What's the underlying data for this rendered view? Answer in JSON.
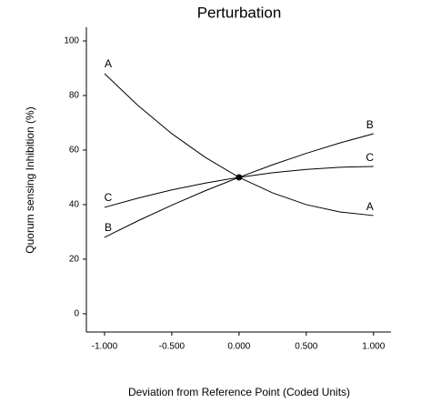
{
  "chart_data": {
    "type": "line",
    "title": "Perturbation",
    "x_label": "Deviation from Reference Point (Coded Units)",
    "y_label": "Quorum sensing Inhibition (%)",
    "x": [
      -1,
      -0.75,
      -0.5,
      -0.25,
      0,
      0.25,
      0.5,
      0.75,
      1
    ],
    "series": [
      {
        "name": "A",
        "color": "#000000",
        "values": [
          88,
          76.3,
          66,
          57.3,
          50,
          44.3,
          40,
          37.3,
          36
        ]
      },
      {
        "name": "B",
        "color": "#000000",
        "values": [
          28,
          34.1,
          39.8,
          45.1,
          50,
          54.6,
          58.8,
          62.6,
          66
        ]
      },
      {
        "name": "C",
        "color": "#000000",
        "values": [
          39,
          42.4,
          45.4,
          47.9,
          50,
          51.7,
          52.9,
          53.7,
          54
        ]
      }
    ],
    "reference_point": {
      "x": 0,
      "y": 50
    },
    "xlim": [
      -1.135,
      1.13
    ],
    "ylim": [
      -6.7,
      105
    ],
    "xticks": [
      {
        "value": -1,
        "label": "-1.000"
      },
      {
        "value": -0.5,
        "label": "-0.500"
      },
      {
        "value": 0,
        "label": "0.000"
      },
      {
        "value": 0.5,
        "label": "0.500"
      },
      {
        "value": 1,
        "label": "1.000"
      }
    ],
    "yticks": [
      0,
      20,
      40,
      60,
      80,
      100
    ]
  }
}
